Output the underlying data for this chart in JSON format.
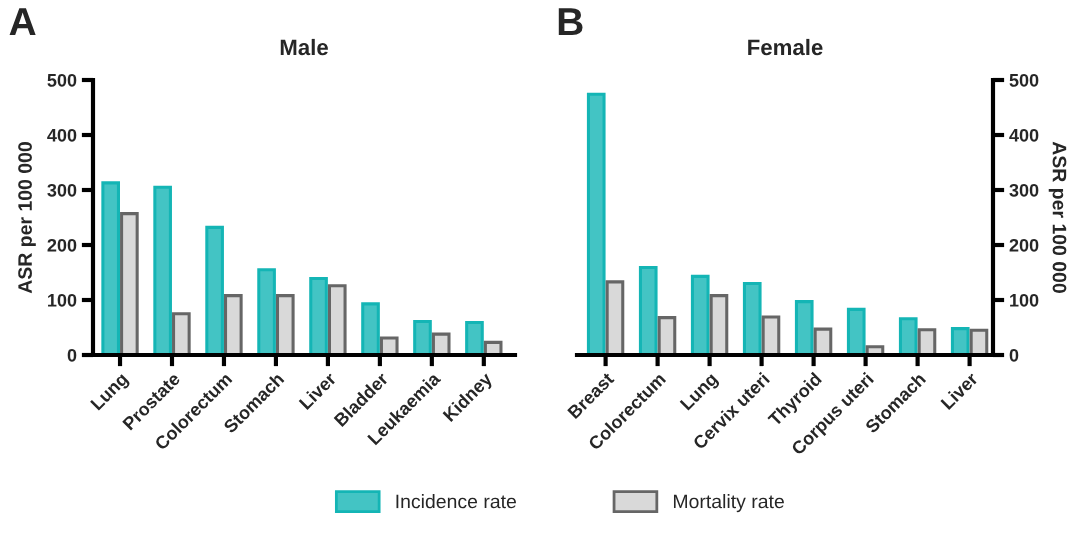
{
  "chart_data": [
    {
      "type": "bar",
      "title": "Male",
      "ylabel": "ASR per 100 000",
      "annotations": [
        "A"
      ],
      "categories": [
        "Lung",
        "Prostate",
        "Colorectum",
        "Stomach",
        "Liver",
        "Bladder",
        "Leukaemia",
        "Kidney"
      ],
      "series": [
        {
          "name": "Incidence rate",
          "color": "#14b5b5",
          "values": [
            313,
            305,
            232,
            155,
            139,
            93,
            61,
            59
          ]
        },
        {
          "name": "Mortality rate",
          "color": "#666666",
          "values": [
            257,
            75,
            108,
            108,
            126,
            31,
            38,
            23
          ]
        }
      ],
      "ylim": [
        0,
        500
      ],
      "yticks": [
        0,
        100,
        200,
        300,
        400,
        500
      ],
      "legend": "bottom",
      "grid": false
    },
    {
      "type": "bar",
      "title": "Female",
      "ylabel": "ASR per 100 000",
      "annotations": [
        "B"
      ],
      "categories": [
        "Breast",
        "Colorectum",
        "Lung",
        "Cervix uteri",
        "Thyroid",
        "Corpus uteri",
        "Stomach",
        "Liver"
      ],
      "series": [
        {
          "color": "#14b5b5",
          "values": [
            474,
            159,
            143,
            130,
            97,
            83,
            66,
            48
          ]
        },
        {
          "color": "#666666",
          "values": [
            133,
            68,
            108,
            69,
            47,
            15,
            46,
            45
          ]
        }
      ],
      "ylim": [
        0,
        500
      ],
      "yticks": [
        0,
        100,
        200,
        300,
        400,
        500
      ],
      "grid": false
    }
  ]
}
